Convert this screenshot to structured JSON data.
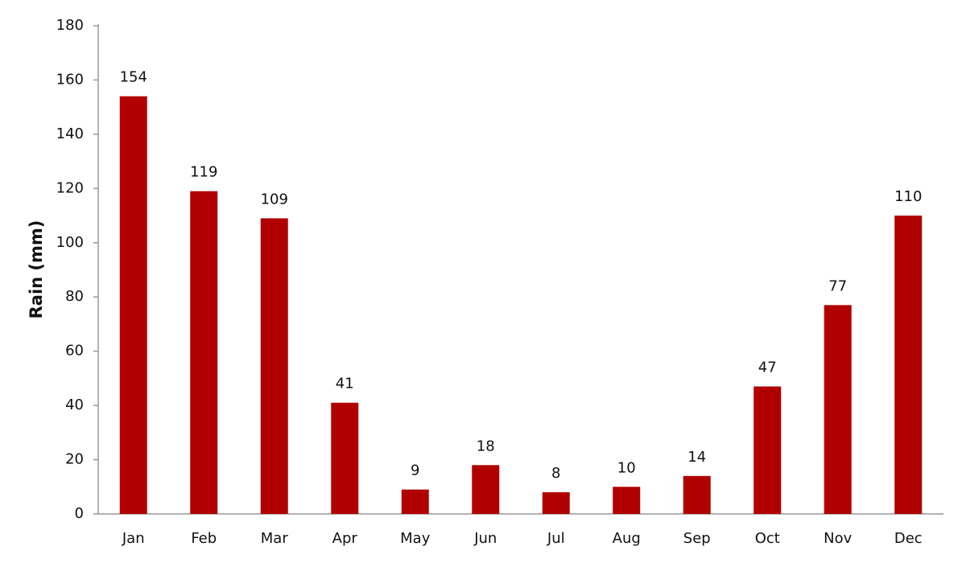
{
  "chart_data": {
    "type": "bar",
    "y_label": "Rain (mm)",
    "categories": [
      "Jan",
      "Feb",
      "Mar",
      "Apr",
      "May",
      "Jun",
      "Jul",
      "Aug",
      "Sep",
      "Oct",
      "Nov",
      "Dec"
    ],
    "values": [
      154,
      119,
      109,
      41,
      9,
      18,
      8,
      10,
      14,
      47,
      77,
      110
    ],
    "color": "#b00000",
    "ylim": [
      0,
      180
    ],
    "yticks": [
      0,
      20,
      40,
      60,
      80,
      100,
      120,
      140,
      160,
      180
    ],
    "grid": false
  }
}
